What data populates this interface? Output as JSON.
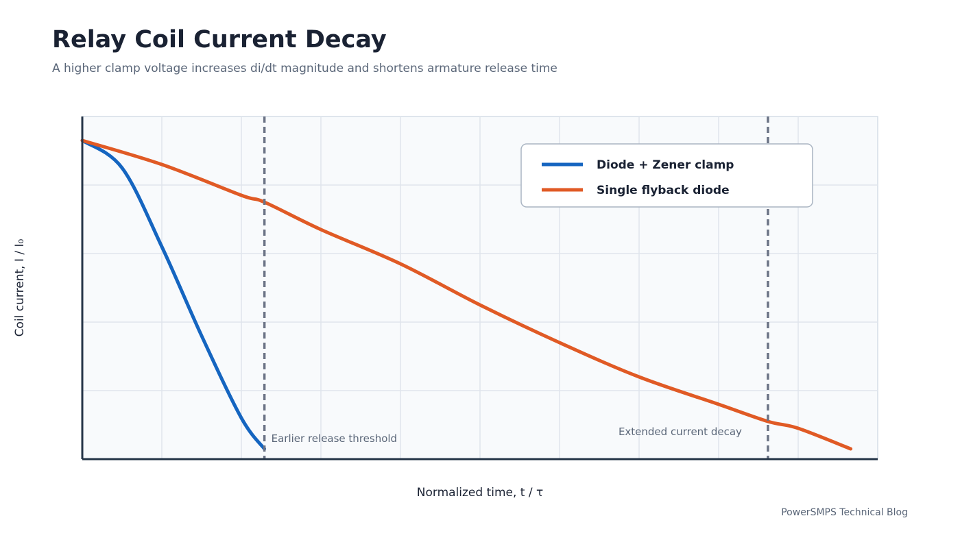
{
  "header": {
    "title": "Relay Coil Current Decay",
    "subtitle": "A higher clamp voltage increases di/dt magnitude and shortens armature release time"
  },
  "footer": {
    "credit": "PowerSMPS Technical Blog"
  },
  "chart_data": {
    "type": "line",
    "title": "Relay Coil Current Decay",
    "subtitle": "A higher clamp voltage increases di/dt magnitude and shortens armature release time",
    "xlabel": "Normalized time, t / τ",
    "ylabel": "Coil current, I / I₀",
    "xlim": [
      0,
      10
    ],
    "ylim": [
      0,
      1
    ],
    "grid": true,
    "legend_position": "top-right",
    "series": [
      {
        "name": "Diode + Zener clamp",
        "color": "#1565c0",
        "x": [
          0,
          0.5,
          1.0,
          1.5,
          2.0,
          2.29
        ],
        "y": [
          0.93,
          0.85,
          0.62,
          0.36,
          0.12,
          0.03
        ]
      },
      {
        "name": "Single flyback diode",
        "color": "#e05a25",
        "x": [
          0,
          1,
          2,
          2.29,
          3,
          4,
          5,
          6,
          7,
          8,
          8.62,
          9,
          9.66
        ],
        "y": [
          0.93,
          0.86,
          0.77,
          0.75,
          0.67,
          0.57,
          0.45,
          0.34,
          0.24,
          0.16,
          0.11,
          0.09,
          0.03
        ]
      }
    ],
    "annotations": [
      {
        "x": 2.29,
        "label": "Earlier release threshold",
        "style": "dashed",
        "color": "#6b7385"
      },
      {
        "x": 8.62,
        "label": "Extended current decay",
        "style": "dashed",
        "color": "#6b7385"
      }
    ]
  }
}
